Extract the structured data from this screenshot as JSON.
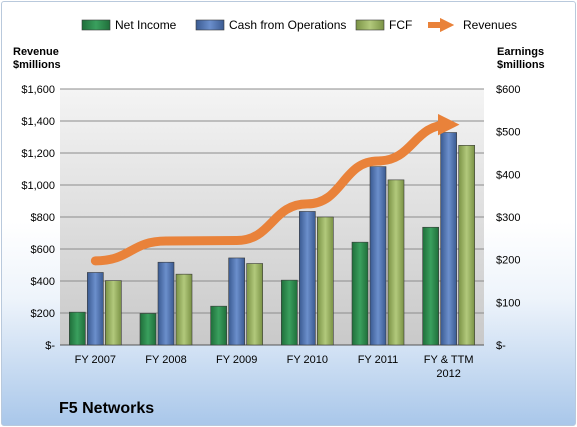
{
  "chart_data": {
    "type": "bar",
    "title": "F5 Networks",
    "categories": [
      [
        "FY 2007"
      ],
      [
        "FY 2008"
      ],
      [
        "FY 2009"
      ],
      [
        "FY 2010"
      ],
      [
        "FY 2011"
      ],
      [
        "FY & TTM",
        "2012"
      ]
    ],
    "series": [
      {
        "name": "Net Income",
        "axis": "right",
        "values": [
          77,
          74,
          91,
          152,
          241,
          276
        ],
        "color": "#2e8b4e"
      },
      {
        "name": "Cash from Operations",
        "axis": "right",
        "values": [
          170,
          194,
          204,
          313,
          418,
          498
        ],
        "color": "#4f73ad"
      },
      {
        "name": "FCF",
        "axis": "right",
        "values": [
          151,
          166,
          191,
          300,
          387,
          468
        ],
        "color": "#93ad5a"
      },
      {
        "name": "Revenues",
        "axis": "left",
        "type": "line",
        "values": [
          526,
          650,
          653,
          882,
          1150,
          1377
        ],
        "color": "#e9823a"
      }
    ],
    "left_axis": {
      "label_line1": "Revenue",
      "label_line2": "$millions",
      "range": [
        0,
        1600
      ],
      "ticks": [
        "$-",
        "$200",
        "$400",
        "$600",
        "$800",
        "$1,000",
        "$1,200",
        "$1,400",
        "$1,600"
      ]
    },
    "right_axis": {
      "label_line1": "Earnings",
      "label_line2": "$millions",
      "range": [
        0,
        600
      ],
      "ticks": [
        "$-",
        "$100",
        "$200",
        "$300",
        "$400",
        "$500",
        "$600"
      ]
    },
    "grid": true,
    "legend_position": "top"
  }
}
